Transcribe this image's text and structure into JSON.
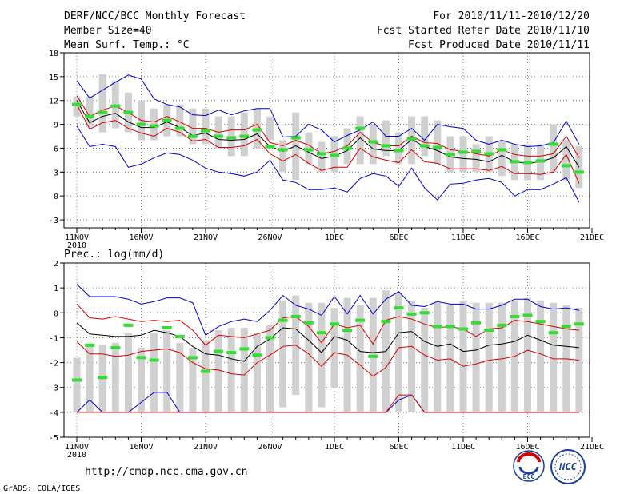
{
  "header": {
    "title": "DERF/NCC/BCC Monthly Forecast",
    "member_size": "Member Size=40",
    "period": "For 2010/11/11-2010/12/20",
    "fcst_started": "Fcst Started Refer Date 2010/11/10",
    "fcst_produced": "Fcst Produced Date 2010/11/11"
  },
  "footer": {
    "url": "http://cmdp.ncc.cma.gov.cn",
    "grads": "GrADS: COLA/IGES",
    "logo_bcc": "BCC",
    "logo_ncc": "NCC"
  },
  "colors": {
    "box": "#d0d0d0",
    "ens_mean": "#000000",
    "percentile": "#d40000",
    "extreme": "#0000cc",
    "obs": "#33dd33"
  },
  "chart_data": [
    {
      "type": "line",
      "title": "Mean Surf. Temp.: °C",
      "ylabel": "°C",
      "ylim": [
        -4,
        18
      ],
      "yticks": [
        -3,
        0,
        3,
        6,
        9,
        12,
        15,
        18
      ],
      "grid": true,
      "x_days": [
        1,
        2,
        3,
        4,
        5,
        6,
        7,
        8,
        9,
        10,
        11,
        12,
        13,
        14,
        15,
        16,
        17,
        18,
        19,
        20,
        21,
        22,
        23,
        24,
        25,
        26,
        27,
        28,
        29,
        30,
        31,
        32,
        33,
        34,
        35,
        36,
        37,
        38,
        39,
        40
      ],
      "xticks": [
        {
          "day": 1,
          "label": "11NOV"
        },
        {
          "day": 6,
          "label": "16NOV"
        },
        {
          "day": 11,
          "label": "21NOV"
        },
        {
          "day": 16,
          "label": "26NOV"
        },
        {
          "day": 21,
          "label": "1DEC"
        },
        {
          "day": 26,
          "label": "6DEC"
        },
        {
          "day": 31,
          "label": "11DEC"
        },
        {
          "day": 36,
          "label": "16DEC"
        },
        {
          "day": 41,
          "label": "21DEC"
        }
      ],
      "xtick_year": "2010",
      "box_low": [
        10,
        8.7,
        8,
        8.5,
        8,
        7,
        7,
        7.5,
        7.5,
        6.5,
        6.5,
        6,
        5,
        5,
        6,
        7,
        3,
        2,
        4,
        3,
        3,
        4,
        4,
        4,
        5,
        4,
        4,
        5,
        4,
        3,
        3,
        3,
        3,
        2.5,
        2,
        2,
        2,
        3,
        2,
        1
      ],
      "box_high": [
        12.5,
        12.5,
        15.3,
        14.5,
        13,
        12,
        11,
        11.5,
        11.5,
        11,
        11,
        10,
        10,
        10.5,
        11,
        10,
        7,
        10.5,
        8,
        6.8,
        7.5,
        8.5,
        10,
        9,
        9.5,
        8,
        10,
        10,
        9.5,
        7.5,
        7.5,
        6.5,
        7.5,
        7,
        6.5,
        6.5,
        6.5,
        9,
        7,
        6.3
      ],
      "series": [
        {
          "name": "max",
          "values": [
            14.5,
            12.3,
            13.3,
            14.3,
            15.2,
            14.7,
            12.2,
            11.5,
            11.2,
            10.2,
            10.1,
            10.8,
            10.2,
            10.7,
            11,
            11,
            7.4,
            7.5,
            9,
            8.3,
            6.8,
            7.6,
            8.3,
            9.3,
            7.5,
            7.5,
            8.5,
            7,
            9,
            8.7,
            8.5,
            7,
            6.5,
            7,
            6.5,
            6.2,
            6.3,
            6.7,
            9.4,
            6.5
          ]
        },
        {
          "name": "p90",
          "values": [
            12.6,
            10,
            10.8,
            11.3,
            10.5,
            9.5,
            9.3,
            10,
            9.3,
            8.5,
            8.5,
            8,
            8.3,
            8.3,
            9,
            6.7,
            6.3,
            7,
            6.4,
            5.3,
            5.6,
            6.3,
            8,
            6.7,
            6.3,
            6.3,
            7.5,
            6.7,
            6.6,
            5.8,
            5.6,
            5.3,
            5,
            5.8,
            5.2,
            5,
            5,
            5.3,
            7.5,
            4.8
          ]
        },
        {
          "name": "mean",
          "values": [
            12,
            9.2,
            10,
            10.4,
            9.3,
            8.6,
            8.6,
            9.3,
            8.6,
            7.6,
            7.9,
            7.1,
            7,
            7.1,
            7.8,
            6.2,
            5.6,
            6.3,
            5.5,
            4.7,
            5,
            5.7,
            7.3,
            5.9,
            5.7,
            5.7,
            7.1,
            6.2,
            5.7,
            4.9,
            4.7,
            4.6,
            4.3,
            5.1,
            4.3,
            4.1,
            4.3,
            4.8,
            6.2,
            3.6
          ]
        },
        {
          "name": "p10",
          "values": [
            11.5,
            8.4,
            9.2,
            9.5,
            8.5,
            7.9,
            7.5,
            8.5,
            8,
            6.9,
            7.1,
            6.1,
            6.1,
            6.3,
            7.1,
            5.3,
            4.4,
            5.2,
            4.1,
            3.2,
            3.6,
            3.6,
            6,
            4.9,
            4.5,
            4.2,
            5.8,
            4.3,
            4.1,
            3.4,
            3.4,
            3.4,
            3.2,
            3.7,
            2.8,
            2.8,
            2.7,
            3,
            5.2,
            1.6
          ]
        },
        {
          "name": "min",
          "values": [
            8.8,
            6.2,
            6.5,
            6.2,
            3.6,
            4,
            4.8,
            5.4,
            5.2,
            4.5,
            3.5,
            3,
            2.8,
            2.5,
            3,
            4.5,
            2,
            1.7,
            0.8,
            0.8,
            1,
            0.5,
            2.2,
            2.8,
            2.5,
            1.2,
            3.5,
            1,
            -0.5,
            1.5,
            1.6,
            2,
            2.2,
            1.7,
            0,
            0.8,
            0.8,
            1.5,
            2.3,
            -0.8
          ]
        }
      ],
      "observed": [
        11.5,
        10,
        10.5,
        11.3,
        10.5,
        9,
        8.8,
        9.5,
        8.5,
        7.5,
        8.2,
        7.5,
        7.3,
        7.5,
        8.3,
        6.2,
        5.8,
        7.3,
        5.8,
        5.3,
        5.1,
        6,
        8.5,
        6.8,
        6.3,
        5.7,
        7.2,
        6.3,
        6.1,
        5.2,
        5.5,
        5.6,
        5.3,
        5.8,
        4.3,
        4.2,
        4.4,
        6.5,
        3.8,
        3
      ]
    },
    {
      "type": "line",
      "title": "Prec.: log(mm/d)",
      "ylabel": "log(mm/d)",
      "ylim": [
        -5,
        2
      ],
      "yticks": [
        -5,
        -4,
        -3,
        -2,
        -1,
        0,
        1,
        2
      ],
      "grid": true,
      "x_days": [
        1,
        2,
        3,
        4,
        5,
        6,
        7,
        8,
        9,
        10,
        11,
        12,
        13,
        14,
        15,
        16,
        17,
        18,
        19,
        20,
        21,
        22,
        23,
        24,
        25,
        26,
        27,
        28,
        29,
        30,
        31,
        32,
        33,
        34,
        35,
        36,
        37,
        38,
        39,
        40
      ],
      "xticks": [
        {
          "day": 1,
          "label": "11NOV"
        },
        {
          "day": 6,
          "label": "16NOV"
        },
        {
          "day": 11,
          "label": "21NOV"
        },
        {
          "day": 16,
          "label": "26NOV"
        },
        {
          "day": 21,
          "label": "1DEC"
        },
        {
          "day": 26,
          "label": "6DEC"
        },
        {
          "day": 31,
          "label": "11DEC"
        },
        {
          "day": 36,
          "label": "16DEC"
        },
        {
          "day": 41,
          "label": "21DEC"
        }
      ],
      "xtick_year": "2010",
      "box_low": [
        -4,
        -4,
        -4,
        -4,
        -4,
        -4,
        -4,
        -4,
        -4,
        -4,
        -4,
        -4,
        -4,
        -4,
        -4,
        -4,
        -3.8,
        -3.3,
        -4,
        -3.8,
        -3,
        -4,
        -4,
        -4,
        -4,
        -4,
        -4,
        -4,
        -4,
        -4,
        -4,
        -4,
        -4,
        -4,
        -4,
        -4,
        -4,
        -4,
        -4,
        -4
      ],
      "box_high": [
        -1.8,
        -1.3,
        -1.3,
        -1.2,
        -0.8,
        -1.4,
        -0.8,
        -0.7,
        -1.2,
        -1.4,
        -1.1,
        -0.7,
        -0.6,
        -0.6,
        -0.8,
        -0.5,
        0.5,
        0.7,
        0.4,
        0.4,
        0.2,
        0.6,
        0.3,
        0.6,
        0.9,
        0.8,
        0.5,
        0.2,
        0.4,
        0.3,
        0.5,
        0.4,
        0.4,
        0.4,
        0.5,
        0.6,
        0.5,
        0.4,
        0.3,
        0.2
      ],
      "series": [
        {
          "name": "max",
          "values": [
            1.15,
            0.65,
            0.65,
            0.65,
            0.55,
            0.35,
            0.45,
            0.6,
            0.6,
            0.4,
            -0.9,
            -0.55,
            -0.35,
            -0.25,
            -0.35,
            0.1,
            0.7,
            0.3,
            0.15,
            -0.1,
            0.65,
            -0.05,
            0.7,
            -0.05,
            0.55,
            0.85,
            0.3,
            0.25,
            0.45,
            0.35,
            0.35,
            0.15,
            0.15,
            0.3,
            0.55,
            0.55,
            0.25,
            0.15,
            0.2,
            0.1
          ]
        },
        {
          "name": "p90",
          "values": [
            0.35,
            -0.2,
            -0.25,
            -0.15,
            -0.25,
            -0.35,
            -0.3,
            -0.35,
            -0.3,
            -0.7,
            -1.3,
            -0.9,
            -0.95,
            -1,
            -0.85,
            -0.7,
            -0.2,
            -0.15,
            -0.55,
            -1.2,
            -0.45,
            -0.6,
            -0.5,
            -1.25,
            -0.3,
            -0.15,
            -0.25,
            -0.45,
            -0.6,
            -0.55,
            -0.65,
            -0.95,
            -0.65,
            -0.6,
            -0.3,
            -0.35,
            -0.45,
            -0.55,
            -0.65,
            -0.7
          ]
        },
        {
          "name": "mean",
          "values": [
            -0.4,
            -0.85,
            -0.9,
            -0.95,
            -0.95,
            -0.9,
            -0.7,
            -0.8,
            -0.95,
            -1.35,
            -1.65,
            -1.7,
            -1.85,
            -1.95,
            -1.35,
            -1.05,
            -0.6,
            -0.65,
            -1.1,
            -1.6,
            -0.95,
            -1.1,
            -1.55,
            -1.6,
            -1.55,
            -0.8,
            -0.75,
            -1.15,
            -1.35,
            -1.25,
            -1.55,
            -1.5,
            -1.3,
            -1.25,
            -1.15,
            -0.9,
            -1.1,
            -1.3,
            -1.35,
            -1.4
          ]
        },
        {
          "name": "p10",
          "values": [
            -1.15,
            -1.65,
            -1.65,
            -1.75,
            -1.7,
            -1.55,
            -1.5,
            -1.45,
            -1.6,
            -2,
            -2.25,
            -2.3,
            -2.45,
            -2.5,
            -2,
            -1.7,
            -1.35,
            -1.3,
            -1.65,
            -2.15,
            -1.6,
            -1.7,
            -2.1,
            -2.55,
            -2.2,
            -1.4,
            -1.35,
            -1.7,
            -1.9,
            -1.85,
            -2.15,
            -2.05,
            -1.9,
            -1.85,
            -1.75,
            -1.5,
            -1.65,
            -1.85,
            -1.85,
            -1.9
          ]
        },
        {
          "name": "min",
          "values": [
            -4,
            -3.5,
            -4,
            -4,
            -4,
            -3.6,
            -3.2,
            -3.2,
            -4,
            -4,
            -4,
            -4,
            -4,
            -4,
            -4,
            -4,
            -4,
            -4,
            -4,
            -4,
            -4,
            -4,
            -4,
            -4,
            -4,
            -3.5,
            -3.3,
            -4,
            -4,
            -4,
            -4,
            -4,
            -4,
            -4,
            -4,
            -4,
            -4,
            -4,
            -4,
            -4
          ]
        },
        {
          "name": "p10_low",
          "values": [
            -4,
            -4,
            -4,
            -4,
            -4,
            -4,
            -4,
            -4,
            -4,
            -4,
            -4,
            -4,
            -4,
            -4,
            -4,
            -4,
            -4,
            -4,
            -4,
            -4,
            -4,
            -4,
            -4,
            -4,
            -4,
            -3.3,
            -3.3,
            -4,
            -4,
            -4,
            -4,
            -4,
            -4,
            -4,
            -4,
            -4,
            -4,
            -4,
            -4,
            -4
          ]
        }
      ],
      "observed": [
        -2.7,
        -1.3,
        -2.6,
        -1.4,
        -0.5,
        -1.8,
        -1.9,
        -0.6,
        -0.95,
        -1.8,
        -2.35,
        -1.55,
        -1.6,
        -1.45,
        -1.7,
        -1,
        -0.3,
        -0.15,
        -0.4,
        -0.8,
        -0.45,
        -0.7,
        -0.3,
        -1.75,
        -0.35,
        0.2,
        -0.05,
        0,
        -0.55,
        -0.55,
        -0.65,
        -0.4,
        -0.7,
        -0.5,
        -0.15,
        -0.1,
        -0.35,
        -0.8,
        -0.55,
        -0.45
      ]
    }
  ]
}
